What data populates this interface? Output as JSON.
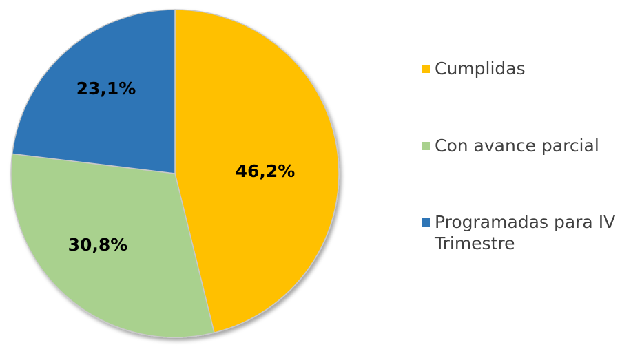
{
  "chart_data": {
    "type": "pie",
    "slices": [
      {
        "name": "Cumplidas",
        "value": 46.2,
        "label": "46,2%",
        "color": "#FFC000"
      },
      {
        "name": "Con avance parcial",
        "value": 30.8,
        "label": "30,8%",
        "color": "#A9D18E"
      },
      {
        "name": "Programadas para IV Trimestre",
        "value": 23.1,
        "label": "23,1%",
        "color": "#2E75B6"
      }
    ],
    "start_angle_deg": 0,
    "direction": "clockwise",
    "legend_position": "right",
    "border_color": "#C9C9C9"
  },
  "legend": {
    "items": [
      {
        "text": "Cumplidas",
        "color": "#FFC000"
      },
      {
        "text": "Con avance parcial",
        "color": "#A9D18E"
      },
      {
        "text": "Programadas para IV Trimestre",
        "color": "#2E75B6"
      }
    ]
  }
}
